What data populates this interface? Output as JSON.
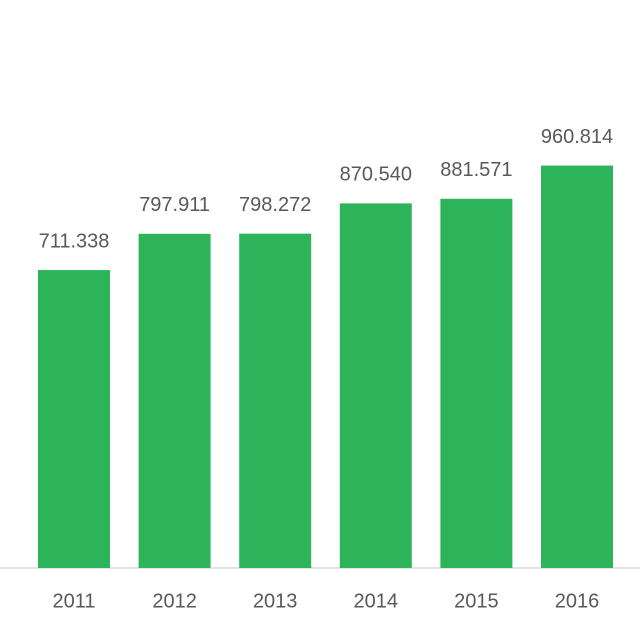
{
  "chart_data": {
    "type": "bar",
    "categories": [
      "2011",
      "2012",
      "2013",
      "2014",
      "2015",
      "2016"
    ],
    "values": [
      711.338,
      797.911,
      798.272,
      870.54,
      881.571,
      960.814
    ],
    "value_labels": [
      "711.338",
      "797.911",
      "798.272",
      "870.540",
      "881.571",
      "960.814"
    ],
    "color": "#2db45a",
    "ylim": [
      0,
      1200
    ]
  }
}
